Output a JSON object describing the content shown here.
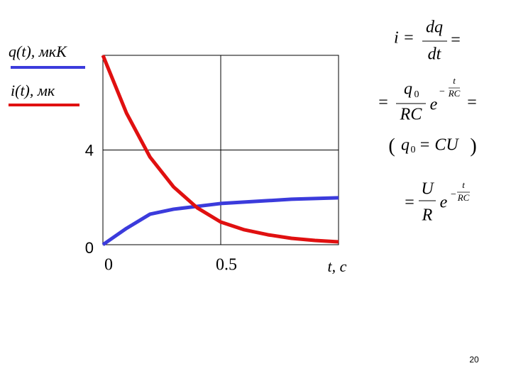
{
  "chart_data": {
    "type": "line",
    "x": [
      0,
      0.1,
      0.2,
      0.3,
      0.4,
      0.5,
      0.6,
      0.7,
      0.8,
      0.9,
      1.0
    ],
    "series": [
      {
        "name": "q(t),   мкК",
        "color": "#3b3bdc",
        "values": [
          0,
          0.69,
          1.29,
          1.5,
          1.62,
          1.74,
          1.8,
          1.86,
          1.92,
          1.95,
          1.98
        ]
      },
      {
        "name": "i(t),   мк",
        "color": "#e01010",
        "values": [
          8,
          5.56,
          3.7,
          2.44,
          1.56,
          0.96,
          0.63,
          0.42,
          0.27,
          0.18,
          0.12
        ]
      }
    ],
    "xlim": [
      0,
      1
    ],
    "ylim": [
      0,
      8
    ],
    "xticks": [
      0,
      0.5
    ],
    "yticks": [
      0,
      4
    ],
    "x_label": "t, c",
    "grid": true
  },
  "formula": [
    "i =",
    "dq",
    "dt",
    "=",
    "=",
    "q",
    "0",
    "RC",
    "e",
    "−",
    "t",
    "RC",
    "=",
    "(",
    "q",
    "0",
    "= CU",
    ")",
    "=",
    "U",
    "R",
    "e",
    "−",
    "t",
    "RC"
  ],
  "page_number": "20"
}
